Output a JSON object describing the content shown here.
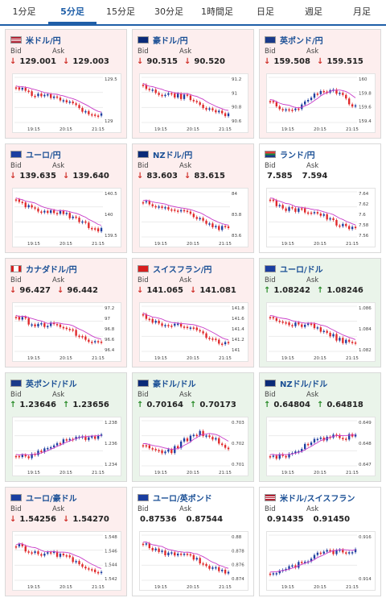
{
  "tabs": [
    "1分足",
    "5分足",
    "15分足",
    "30分足",
    "1時間足",
    "日足",
    "週足",
    "月足"
  ],
  "active_tab": 1,
  "labels": {
    "bid": "Bid",
    "ask": "Ask"
  },
  "cards": [
    {
      "title": "米ドル/円",
      "flag": "us",
      "trend": "down",
      "bid": "129.001",
      "ask": "129.003",
      "ticks": [
        "129.5",
        "129"
      ],
      "times": [
        "19:15",
        "20:15",
        "21:15"
      ],
      "shape": "down"
    },
    {
      "title": "豪ドル/円",
      "flag": "au",
      "trend": "down",
      "bid": "90.515",
      "ask": "90.520",
      "ticks": [
        "91.2",
        "91",
        "90.8",
        "90.6"
      ],
      "times": [
        "19:15",
        "20:15",
        "21:15"
      ],
      "shape": "down"
    },
    {
      "title": "英ポンド/円",
      "flag": "gb",
      "trend": "down",
      "bid": "159.508",
      "ask": "159.515",
      "ticks": [
        "160",
        "159.8",
        "159.6",
        "159.4"
      ],
      "times": [
        "19:15",
        "20:15",
        "21:15"
      ],
      "shape": "wave"
    },
    {
      "title": "ユーロ/円",
      "flag": "eu",
      "trend": "down",
      "bid": "139.635",
      "ask": "139.640",
      "ticks": [
        "140.5",
        "140",
        "139.5"
      ],
      "times": [
        "19:15",
        "20:15",
        "21:15"
      ],
      "shape": "down"
    },
    {
      "title": "NZドル/円",
      "flag": "nz",
      "trend": "down",
      "bid": "83.603",
      "ask": "83.615",
      "ticks": [
        "84",
        "83.8",
        "83.6"
      ],
      "times": [
        "19:15",
        "20:15",
        "21:15"
      ],
      "shape": "down"
    },
    {
      "title": "ランド/円",
      "flag": "za",
      "trend": "neutral",
      "bid": "7.585",
      "ask": "7.594",
      "ticks": [
        "7.64",
        "7.62",
        "7.6",
        "7.58",
        "7.56"
      ],
      "times": [
        "19:15",
        "20:15",
        "21:15"
      ],
      "shape": "down"
    },
    {
      "title": "カナダドル/円",
      "flag": "ca",
      "trend": "down",
      "bid": "96.427",
      "ask": "96.442",
      "ticks": [
        "97.2",
        "97",
        "96.8",
        "96.6",
        "96.4"
      ],
      "times": [
        "19:15",
        "20:15",
        "21:15"
      ],
      "shape": "down"
    },
    {
      "title": "スイスフラン/円",
      "flag": "ch",
      "trend": "down",
      "bid": "141.065",
      "ask": "141.081",
      "ticks": [
        "141.8",
        "141.6",
        "141.4",
        "141.2",
        "141"
      ],
      "times": [
        "19:15",
        "20:15",
        "21:15"
      ],
      "shape": "down"
    },
    {
      "title": "ユーロ/ドル",
      "flag": "eu",
      "trend": "up",
      "bid": "1.08242",
      "ask": "1.08246",
      "ticks": [
        "1.086",
        "1.084",
        "1.082"
      ],
      "times": [
        "19:15",
        "20:15",
        "21:15"
      ],
      "shape": "down"
    },
    {
      "title": "英ポンド/ドル",
      "flag": "gb",
      "trend": "up",
      "bid": "1.23646",
      "ask": "1.23656",
      "ticks": [
        "1.238",
        "1.236",
        "1.234"
      ],
      "times": [
        "19:15",
        "20:15",
        "21:15"
      ],
      "shape": "up"
    },
    {
      "title": "豪ドル/ドル",
      "flag": "au",
      "trend": "up",
      "bid": "0.70164",
      "ask": "0.70173",
      "ticks": [
        "0.703",
        "0.702",
        "0.701"
      ],
      "times": [
        "19:15",
        "20:15",
        "21:15"
      ],
      "shape": "wave"
    },
    {
      "title": "NZドル/ドル",
      "flag": "nz",
      "trend": "up",
      "bid": "0.64804",
      "ask": "0.64818",
      "ticks": [
        "0.649",
        "0.648",
        "0.647"
      ],
      "times": [
        "19:15",
        "20:15",
        "21:15"
      ],
      "shape": "up"
    },
    {
      "title": "ユーロ/豪ドル",
      "flag": "eu",
      "trend": "down",
      "bid": "1.54256",
      "ask": "1.54270",
      "ticks": [
        "1.548",
        "1.546",
        "1.544",
        "1.542"
      ],
      "times": [
        "19:15",
        "20:15",
        "21:15"
      ],
      "shape": "down"
    },
    {
      "title": "ユーロ/英ポンド",
      "flag": "eu",
      "trend": "neutral",
      "bid": "0.87536",
      "ask": "0.87544",
      "ticks": [
        "0.88",
        "0.878",
        "0.876",
        "0.874"
      ],
      "times": [
        "19:15",
        "20:15",
        "21:15"
      ],
      "shape": "down"
    },
    {
      "title": "米ドル/スイスフラン",
      "flag": "us",
      "trend": "neutral",
      "bid": "0.91435",
      "ask": "0.91450",
      "ticks": [
        "0.916",
        "0.914"
      ],
      "times": [
        "19:15",
        "20:15",
        "21:15"
      ],
      "shape": "up"
    }
  ],
  "colors": {
    "up_candle": "#1f3fa0",
    "down_candle": "#e0282a",
    "ma": "#c83cc8",
    "title": "#1a4f95",
    "accent": "#1f5fa8"
  }
}
